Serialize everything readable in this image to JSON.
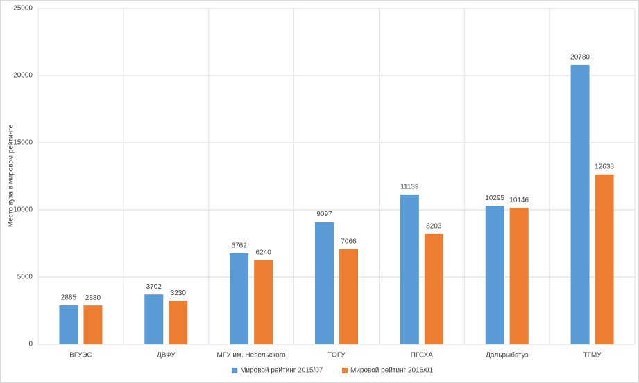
{
  "chart_data": {
    "type": "bar",
    "y_label": "Место вуза в мировом рейтинге",
    "categories": [
      "ВГУЭС",
      "ДВФУ",
      "МГУ им. Невельского",
      "ТОГУ",
      "ПГСХА",
      "Дальрыбвтуз",
      "ТГМУ"
    ],
    "series": [
      {
        "name": "Мировой рейтинг 2015/07",
        "color": "#5b9bd5",
        "values": [
          2885,
          3702,
          6762,
          9097,
          11139,
          10295,
          20780
        ]
      },
      {
        "name": "Мировой рейтинг 2016/01",
        "color": "#ed7d31",
        "values": [
          2880,
          3230,
          6240,
          7066,
          8203,
          10146,
          12638
        ]
      }
    ],
    "ylim": [
      0,
      25000
    ],
    "yticks": [
      0,
      5000,
      10000,
      15000,
      20000,
      25000
    ],
    "grid": true,
    "legend": "bottom"
  }
}
